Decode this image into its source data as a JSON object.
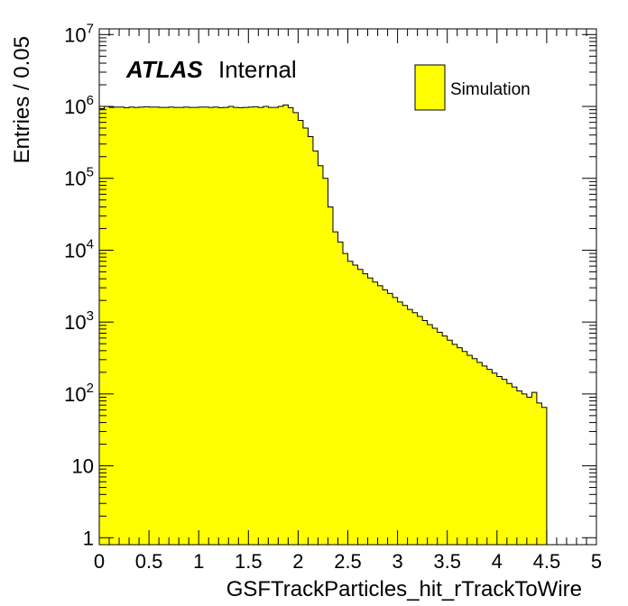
{
  "chart_data": {
    "type": "histogram",
    "xlabel": "GSFTrackParticles_hit_rTrackToWire",
    "ylabel": "Entries / 0.05",
    "xlim": [
      0,
      5
    ],
    "ylim": [
      0.8,
      12000000
    ],
    "yscale": "log",
    "bin_width": 0.05,
    "fill_color": "#ffff00",
    "line_color": "#000000",
    "x_tick_labels": [
      "0",
      "0.5",
      "1",
      "1.5",
      "2",
      "2.5",
      "3",
      "3.5",
      "4",
      "4.5",
      "5"
    ],
    "y_ticks": [
      {
        "value": 1,
        "base": "1",
        "exp": ""
      },
      {
        "value": 10,
        "base": "10",
        "exp": ""
      },
      {
        "value": 100,
        "base": "10",
        "exp": "2"
      },
      {
        "value": 1000,
        "base": "10",
        "exp": "3"
      },
      {
        "value": 10000,
        "base": "10",
        "exp": "4"
      },
      {
        "value": 100000,
        "base": "10",
        "exp": "5"
      },
      {
        "value": 1000000,
        "base": "10",
        "exp": "6"
      },
      {
        "value": 10000000,
        "base": "10",
        "exp": "7"
      }
    ],
    "legend": {
      "position": "top-right",
      "entries": [
        {
          "label": "Simulation",
          "color": "#ffff00"
        }
      ]
    },
    "atlas_label": {
      "bold": "ATLAS",
      "text": "Internal"
    },
    "series": [
      {
        "values": [
          930000,
          1000000,
          970000,
          980000,
          980000,
          960000,
          980000,
          970000,
          980000,
          990000,
          980000,
          980000,
          970000,
          970000,
          980000,
          970000,
          970000,
          980000,
          970000,
          970000,
          980000,
          980000,
          970000,
          980000,
          960000,
          970000,
          1000000,
          970000,
          960000,
          970000,
          980000,
          990000,
          970000,
          1000000,
          970000,
          970000,
          1000000,
          1050000,
          960000,
          820000,
          640000,
          500000,
          380000,
          240000,
          150000,
          100000,
          40000,
          18000,
          13000,
          9000,
          7000,
          6200,
          5400,
          4700,
          4100,
          3600,
          3200,
          2800,
          2500,
          2200,
          1900,
          1700,
          1500,
          1350,
          1200,
          1050,
          920,
          820,
          720,
          640,
          560,
          490,
          440,
          390,
          345,
          310,
          275,
          245,
          220,
          195,
          175,
          160,
          140,
          125,
          110,
          100,
          90,
          105,
          75,
          65
        ]
      }
    ]
  }
}
